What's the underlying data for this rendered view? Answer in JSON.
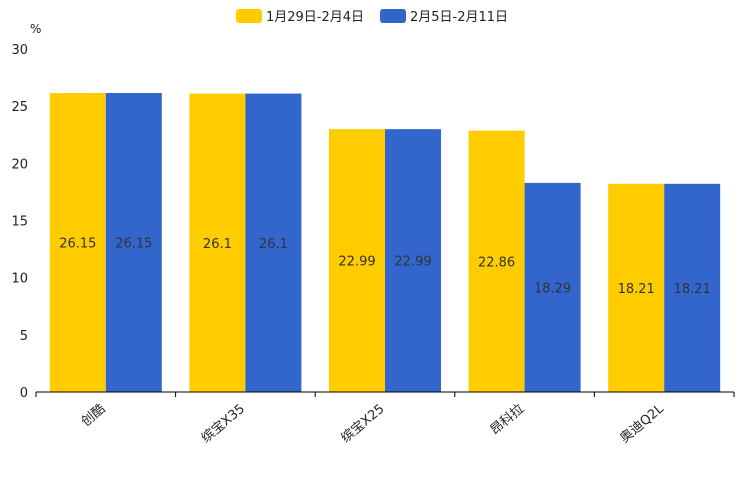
{
  "chart_data": {
    "type": "bar",
    "title": "",
    "unit": "%",
    "xlabel": "",
    "ylabel": "%",
    "ylim": [
      0,
      30
    ],
    "yticks": [
      0,
      5,
      10,
      15,
      20,
      25,
      30
    ],
    "categories": [
      "创酷",
      "缤宝X35",
      "缤宝X25",
      "昂科拉",
      "奥迪Q2L"
    ],
    "series": [
      {
        "name": "1月29日-2月4日",
        "color": "#ffcc00",
        "values": [
          26.15,
          26.1,
          22.99,
          22.86,
          18.21
        ]
      },
      {
        "name": "2月5日-2月11日",
        "color": "#3366cc",
        "values": [
          26.15,
          26.1,
          22.99,
          18.29,
          18.21
        ]
      }
    ],
    "legend_position": "top-center",
    "grid": false
  }
}
